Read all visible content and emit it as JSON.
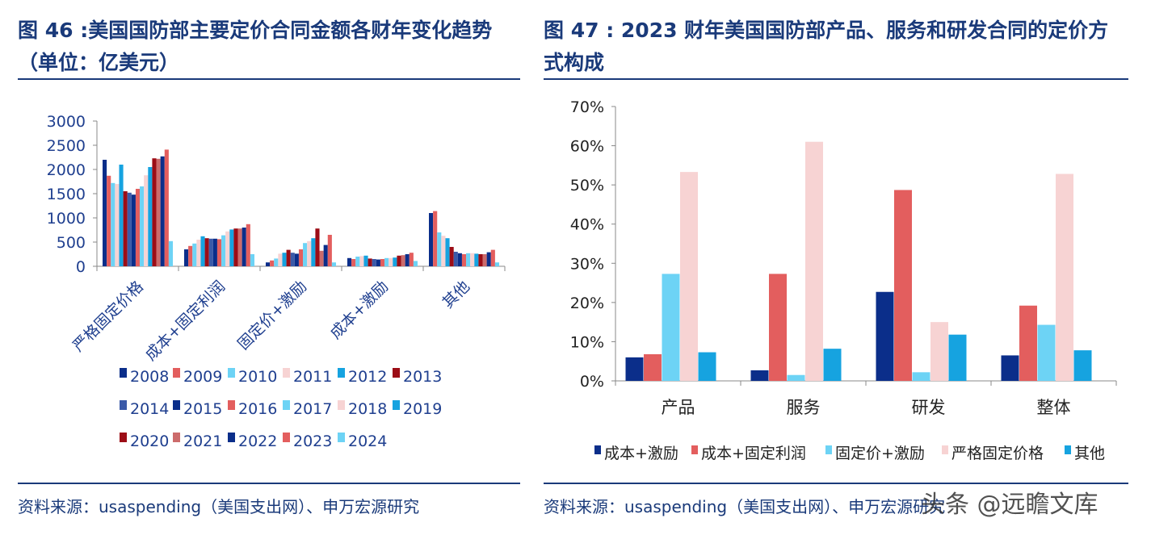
{
  "left": {
    "title": "图 46 :美国国防部主要定价合同金额各财年变化趋势（单位：亿美元）",
    "source": "资料来源：usaspending（美国支出网）、申万宏源研究"
  },
  "right": {
    "title": "图 47 : 2023 财年美国国防部产品、服务和研发合同的定价方式构成",
    "source": "资料来源：usaspending（美国支出网）、申万宏源研究"
  },
  "watermark": "头条 @远瞻文库",
  "chart_data": [
    {
      "type": "bar",
      "title": "图 46 :美国国防部主要定价合同金额各财年变化趋势（单位：亿美元）",
      "categories": [
        "严格固定价格",
        "成本+固定利润",
        "固定价+激励",
        "成本+激励",
        "其他"
      ],
      "ylim": [
        0,
        3000
      ],
      "yticks": [
        0,
        500,
        1000,
        1500,
        2000,
        2500,
        3000
      ],
      "grid": false,
      "legend_position": "bottom",
      "series": [
        {
          "name": "2008",
          "color": "#0b2e8a",
          "values": [
            2200,
            350,
            80,
            170,
            1100
          ]
        },
        {
          "name": "2009",
          "color": "#e35e5e",
          "values": [
            1870,
            420,
            120,
            150,
            1140
          ]
        },
        {
          "name": "2010",
          "color": "#6dd3f5",
          "values": [
            1720,
            470,
            160,
            200,
            700
          ]
        },
        {
          "name": "2011",
          "color": "#f7d3d3",
          "values": [
            1700,
            550,
            260,
            210,
            630
          ]
        },
        {
          "name": "2012",
          "color": "#16a3e0",
          "values": [
            2100,
            620,
            280,
            220,
            580
          ]
        },
        {
          "name": "2013",
          "color": "#9c0d16",
          "values": [
            1550,
            580,
            340,
            160,
            400
          ]
        },
        {
          "name": "2014",
          "color": "#3b5aa8",
          "values": [
            1520,
            570,
            280,
            150,
            300
          ]
        },
        {
          "name": "2015",
          "color": "#0b2e8a",
          "values": [
            1480,
            570,
            260,
            140,
            270
          ]
        },
        {
          "name": "2016",
          "color": "#e35e5e",
          "values": [
            1600,
            560,
            350,
            150,
            250
          ]
        },
        {
          "name": "2017",
          "color": "#6dd3f5",
          "values": [
            1650,
            640,
            480,
            170,
            270
          ]
        },
        {
          "name": "2018",
          "color": "#f7d3d3",
          "values": [
            1880,
            720,
            520,
            170,
            270
          ]
        },
        {
          "name": "2019",
          "color": "#16a3e0",
          "values": [
            2050,
            760,
            580,
            180,
            260
          ]
        },
        {
          "name": "2020",
          "color": "#9c0d16",
          "values": [
            2230,
            780,
            780,
            220,
            250
          ]
        },
        {
          "name": "2021",
          "color": "#cc6b6b",
          "values": [
            2220,
            780,
            320,
            230,
            250
          ]
        },
        {
          "name": "2022",
          "color": "#0b2e8a",
          "values": [
            2270,
            800,
            440,
            250,
            290
          ]
        },
        {
          "name": "2023",
          "color": "#e35e5e",
          "values": [
            2410,
            870,
            650,
            280,
            340
          ]
        },
        {
          "name": "2024",
          "color": "#6dd3f5",
          "values": [
            520,
            250,
            80,
            110,
            80
          ]
        }
      ]
    },
    {
      "type": "bar",
      "title": "图 47 : 2023 财年美国国防部产品、服务和研发合同的定价方式构成",
      "categories": [
        "产品",
        "服务",
        "研发",
        "整体"
      ],
      "ylim": [
        0,
        70
      ],
      "yticks": [
        "0%",
        "10%",
        "20%",
        "30%",
        "40%",
        "50%",
        "60%",
        "70%"
      ],
      "grid": false,
      "legend_position": "bottom",
      "series": [
        {
          "name": "成本+激励",
          "color": "#0b2e8a",
          "values": [
            6.0,
            2.7,
            22.7,
            6.5
          ]
        },
        {
          "name": "成本+固定利润",
          "color": "#e35e5e",
          "values": [
            6.8,
            27.3,
            48.7,
            19.2
          ]
        },
        {
          "name": "固定价+激励",
          "color": "#6dd3f5",
          "values": [
            27.3,
            1.5,
            2.2,
            14.3
          ]
        },
        {
          "name": "严格固定价格",
          "color": "#f7d3d3",
          "values": [
            53.3,
            61.0,
            15.0,
            52.8
          ]
        },
        {
          "name": "其他",
          "color": "#16a3e0",
          "values": [
            7.3,
            8.2,
            11.8,
            7.8
          ]
        }
      ]
    }
  ]
}
